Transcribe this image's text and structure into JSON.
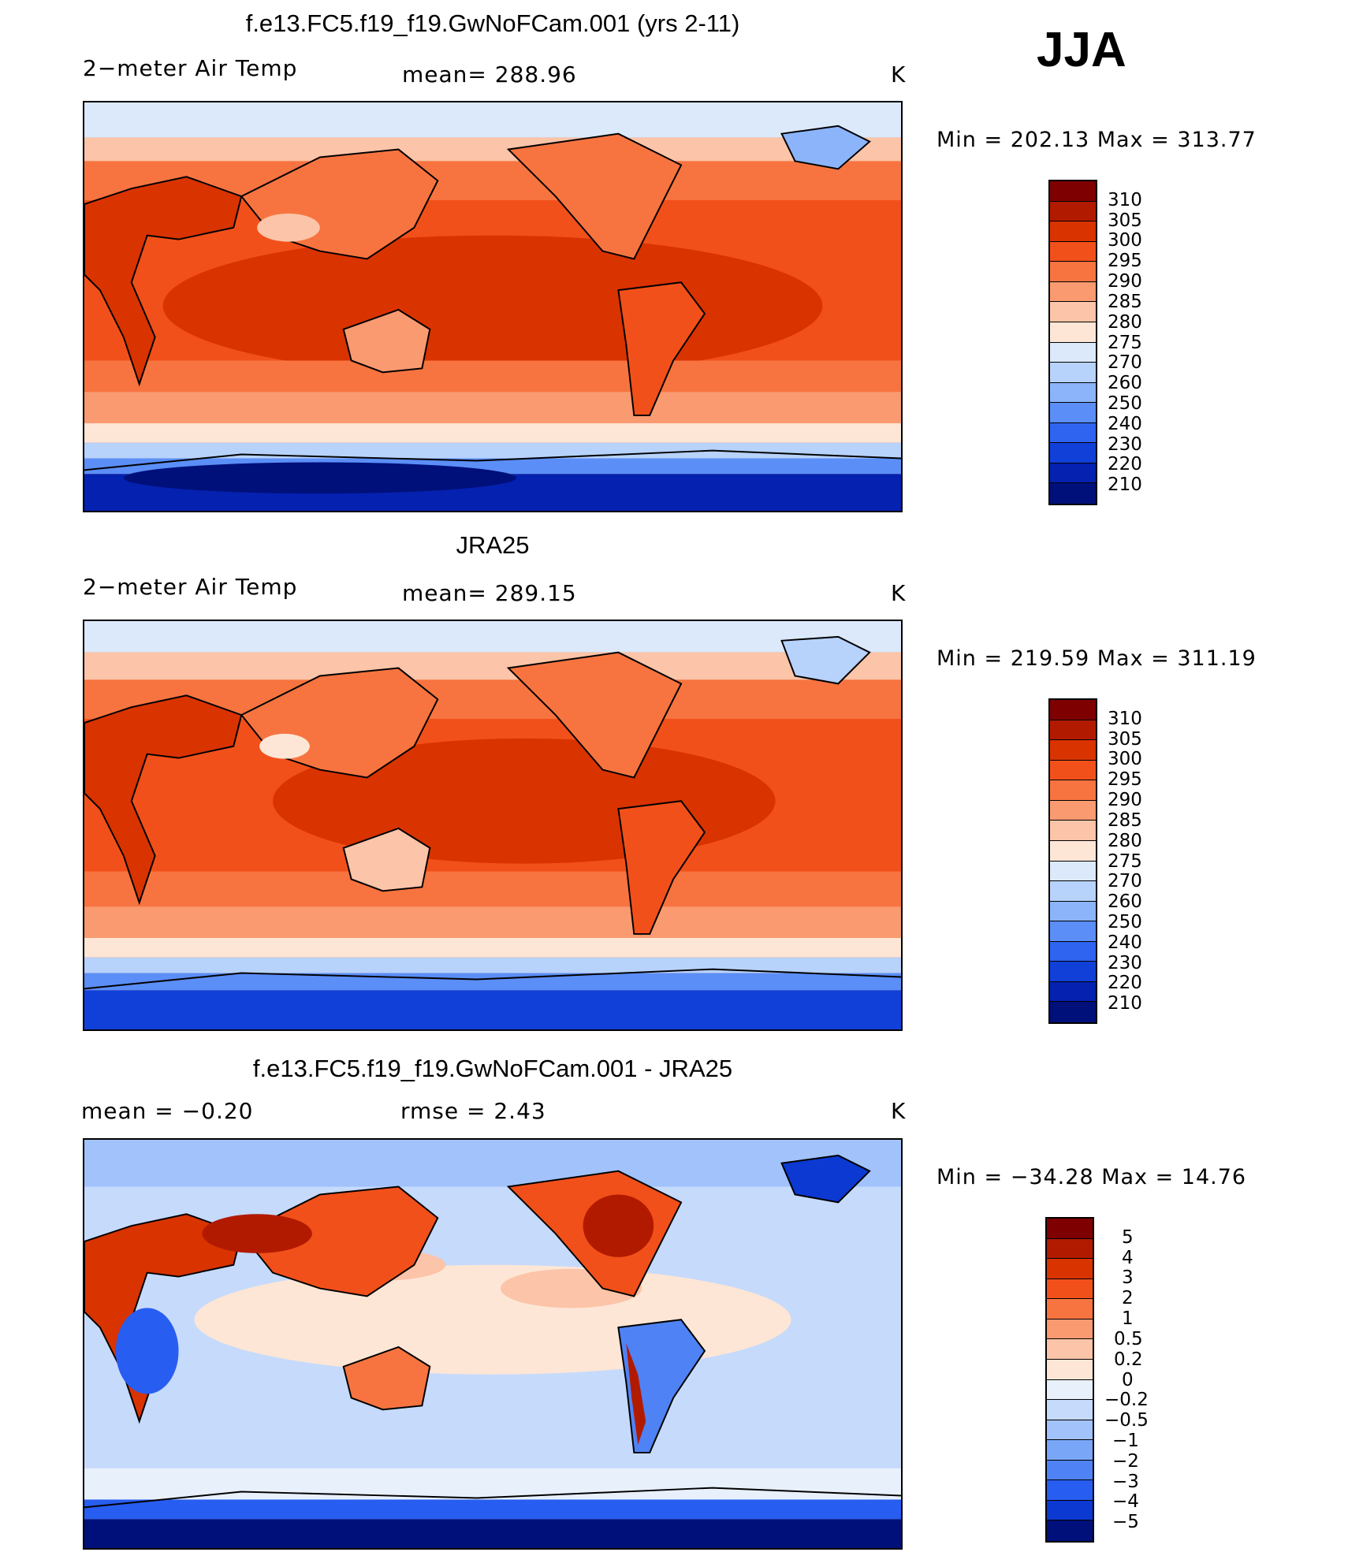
{
  "season": "JJA",
  "panels": [
    {
      "title": "f.e13.FC5.f19_f19.GwNoFCam.001 (yrs 2-11)",
      "left_label": "2−meter Air Temp",
      "center_label": "mean=  288.96",
      "units": "K",
      "minmax": "Min  =  202.13  Max  =  313.77",
      "colorbar_labels": [
        "310",
        "305",
        "300",
        "295",
        "290",
        "285",
        "280",
        "275",
        "270",
        "260",
        "250",
        "240",
        "230",
        "220",
        "210"
      ]
    },
    {
      "title": "JRA25",
      "left_label": "2−meter Air Temp",
      "center_label": "mean=  289.15",
      "units": "K",
      "minmax": "Min  =  219.59  Max  =  311.19",
      "colorbar_labels": [
        "310",
        "305",
        "300",
        "295",
        "290",
        "285",
        "280",
        "275",
        "270",
        "260",
        "250",
        "240",
        "230",
        "220",
        "210"
      ]
    },
    {
      "title": "f.e13.FC5.f19_f19.GwNoFCam.001 - JRA25",
      "left_label": "mean  =     −0.20",
      "center_label": "rmse  =     2.43",
      "units": "K",
      "minmax": "Min  =  −34.28  Max  =    14.76",
      "colorbar_labels": [
        "5",
        "4",
        "3",
        "2",
        "1",
        "0.5",
        "0.2",
        "0",
        "−0.2",
        "−0.5",
        "−1",
        "−2",
        "−3",
        "−4",
        "−5"
      ]
    }
  ],
  "colors": {
    "temp_scale": [
      "#7f0000",
      "#b21a00",
      "#d93300",
      "#f2501a",
      "#f77440",
      "#fa9a70",
      "#fcc4a8",
      "#fde6d6",
      "#dbe9fb",
      "#b7d2fb",
      "#8cb4fb",
      "#5b8ef7",
      "#2e64f0",
      "#1140d9",
      "#0421b0",
      "#00107a"
    ],
    "diff_scale": [
      "#7f0000",
      "#b21a00",
      "#d93300",
      "#f2501a",
      "#f77440",
      "#fa9a70",
      "#fcc4a8",
      "#fde6d6",
      "#e8f0fc",
      "#c6dafc",
      "#a2c2fb",
      "#7aa6f8",
      "#4f82f4",
      "#275df0",
      "#0c39d2",
      "#00107a"
    ]
  }
}
